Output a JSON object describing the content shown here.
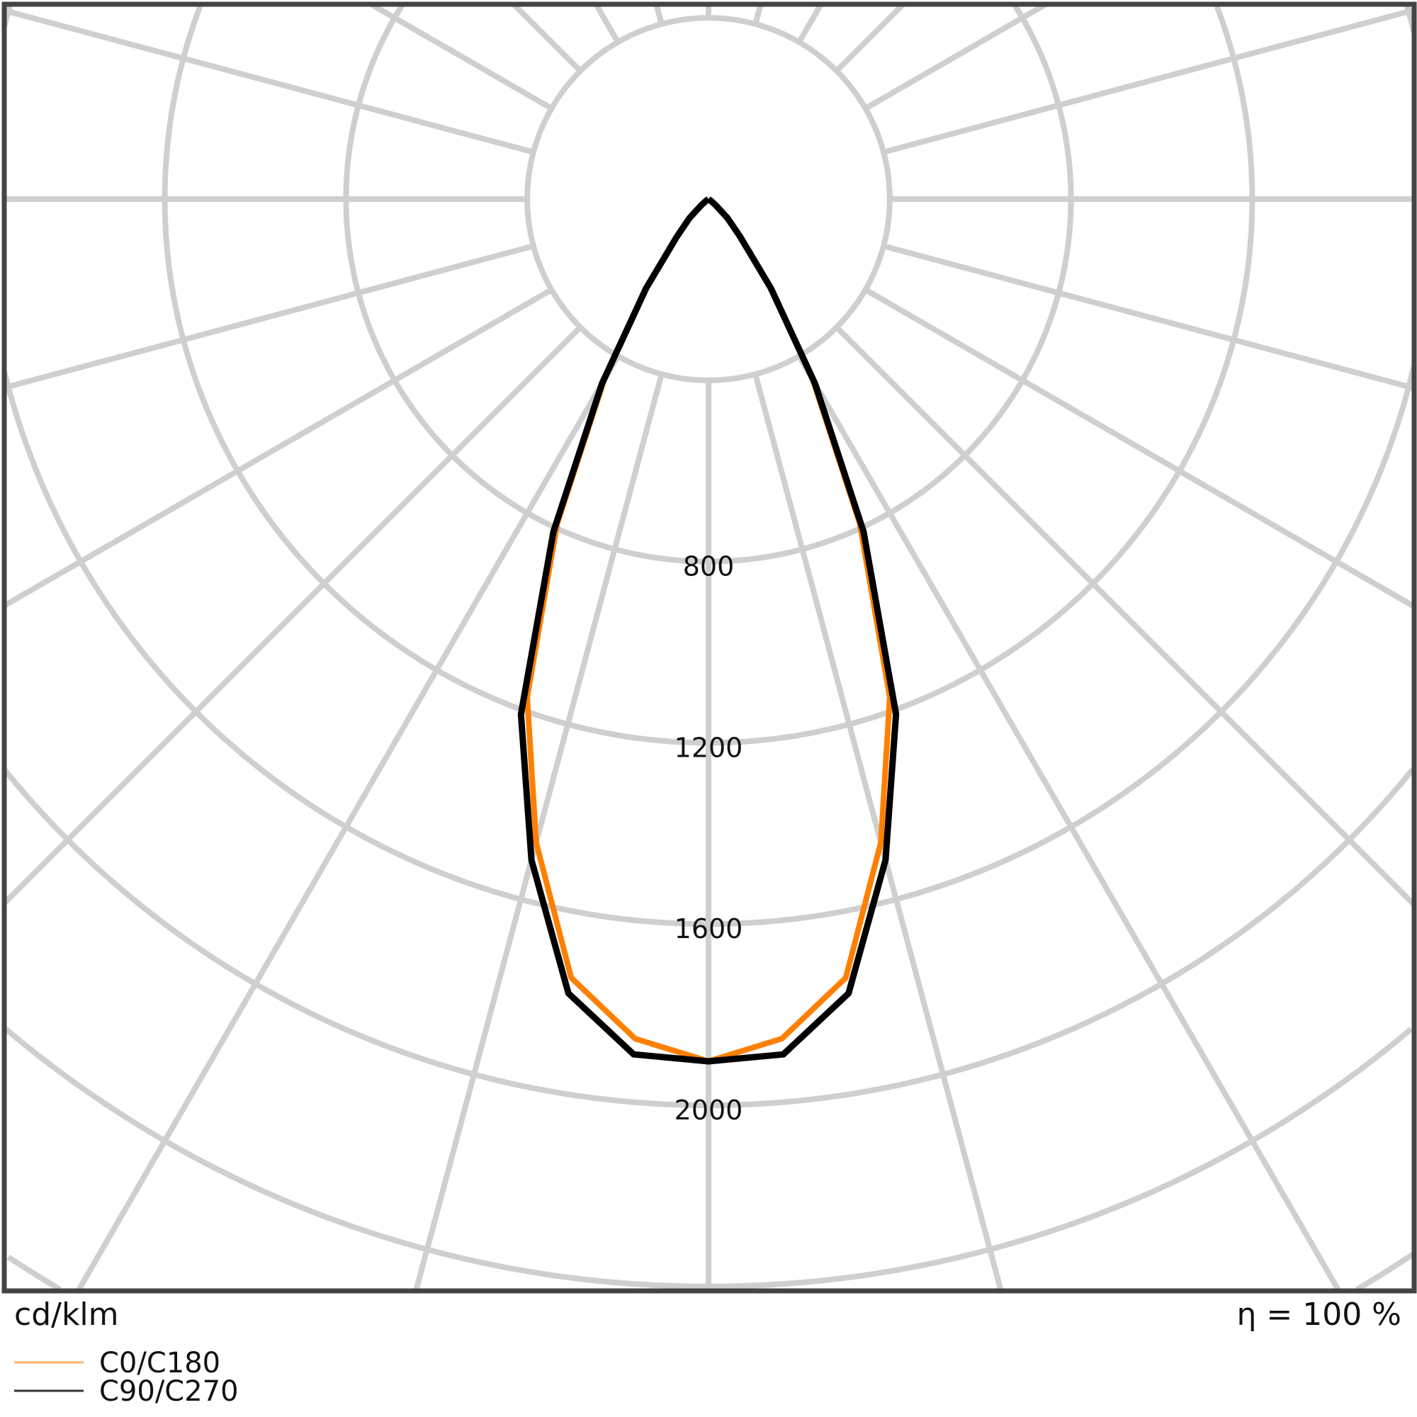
{
  "chart_data": {
    "type": "polar",
    "unit_label": "cd/klm",
    "efficiency_label": "η = 100 %",
    "radial_ticks": [
      800,
      1200,
      1600,
      2000
    ],
    "ring_step": 400,
    "spoke_step_deg": 15,
    "grid": true,
    "legend_position": "bottom-left",
    "angles_from_nadir_deg": [
      0,
      5,
      10,
      15,
      20,
      25,
      30,
      35,
      40,
      45,
      50,
      55,
      60,
      65,
      70,
      75,
      80,
      85,
      90
    ],
    "symmetric": true,
    "series": [
      {
        "name": "C0/C180",
        "color": "#ff8000",
        "legend_color": "#ffb36b",
        "values": [
          1903,
          1860,
          1745,
          1470,
          1170,
          790,
          460,
          235,
          105,
          55,
          20,
          5,
          0,
          0,
          0,
          0,
          0,
          0,
          0
        ]
      },
      {
        "name": "C90/C270",
        "color": "#000000",
        "legend_color": "#333333",
        "values": [
          1903,
          1895,
          1780,
          1510,
          1210,
          810,
          470,
          240,
          110,
          60,
          20,
          5,
          0,
          0,
          0,
          0,
          0,
          0,
          0
        ]
      }
    ]
  }
}
